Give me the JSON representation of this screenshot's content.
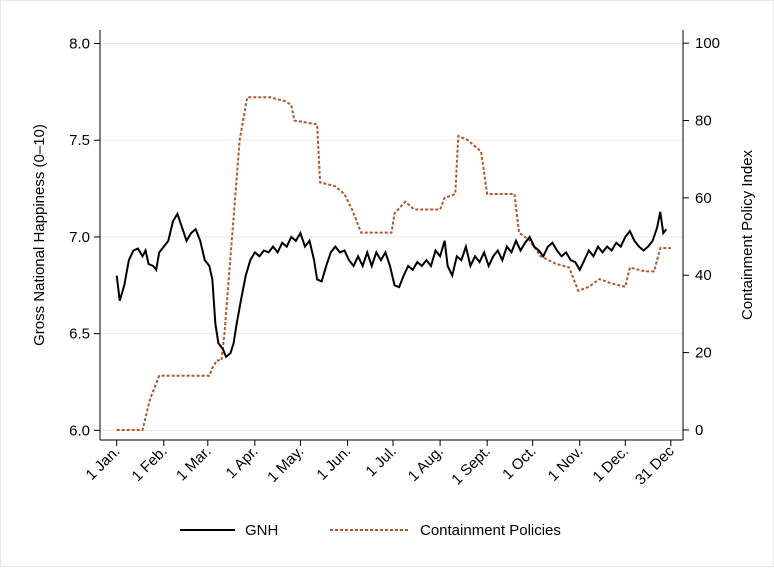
{
  "chart_data": {
    "type": "line",
    "y_label": "Gross National Happiness (0–10)",
    "y2_label": "Containment Policy Index",
    "xlim": [
      -10,
      374
    ],
    "xticks": [
      {
        "value": 1,
        "label": "1 Jan."
      },
      {
        "value": 32,
        "label": "1 Feb."
      },
      {
        "value": 61,
        "label": "1 Mar."
      },
      {
        "value": 92,
        "label": "1 Apr."
      },
      {
        "value": 122,
        "label": "1 May."
      },
      {
        "value": 153,
        "label": "1 Jun."
      },
      {
        "value": 183,
        "label": "1 Jul."
      },
      {
        "value": 214,
        "label": "1 Aug."
      },
      {
        "value": 245,
        "label": "1 Sept."
      },
      {
        "value": 275,
        "label": "1 Oct."
      },
      {
        "value": 306,
        "label": "1 Nov."
      },
      {
        "value": 336,
        "label": "1 Dec."
      },
      {
        "value": 366,
        "label": "31 Dec"
      }
    ],
    "ylim": [
      5.95,
      8.07
    ],
    "yticks": [
      {
        "value": 6.0,
        "label": "6.0"
      },
      {
        "value": 6.5,
        "label": "6.5"
      },
      {
        "value": 7.0,
        "label": "7.0"
      },
      {
        "value": 7.5,
        "label": "7.5"
      },
      {
        "value": 8.0,
        "label": "8.0"
      }
    ],
    "y2lim": [
      -2.6,
      103.4
    ],
    "y2ticks": [
      0,
      20,
      40,
      60,
      80,
      100
    ],
    "grid": true,
    "legend": "bottom",
    "series": [
      {
        "name": "GNH",
        "color": "#000000",
        "dash": false,
        "axis": "y",
        "x": [
          1,
          3,
          6,
          9,
          12,
          15,
          18,
          20,
          22,
          25,
          27,
          29,
          32,
          35,
          38,
          41,
          44,
          47,
          50,
          53,
          56,
          59,
          62,
          64,
          66,
          68,
          71,
          73,
          76,
          78,
          80,
          83,
          86,
          89,
          92,
          95,
          98,
          101,
          104,
          107,
          110,
          113,
          116,
          119,
          122,
          125,
          128,
          131,
          133,
          136,
          139,
          142,
          145,
          148,
          151,
          154,
          157,
          160,
          163,
          166,
          169,
          172,
          175,
          178,
          181,
          184,
          187,
          190,
          193,
          196,
          199,
          202,
          205,
          208,
          211,
          214,
          217,
          219,
          222,
          225,
          228,
          231,
          234,
          237,
          240,
          243,
          246,
          249,
          252,
          255,
          258,
          261,
          264,
          267,
          270,
          273,
          276,
          279,
          282,
          285,
          288,
          291,
          294,
          297,
          300,
          303,
          306,
          309,
          312,
          315,
          318,
          321,
          324,
          327,
          330,
          333,
          336,
          339,
          342,
          345,
          348,
          351,
          354,
          357,
          359,
          361,
          363
        ],
        "values": [
          6.8,
          6.67,
          6.75,
          6.88,
          6.93,
          6.94,
          6.9,
          6.93,
          6.86,
          6.85,
          6.83,
          6.92,
          6.95,
          6.98,
          7.08,
          7.12,
          7.05,
          6.98,
          7.02,
          7.04,
          6.98,
          6.88,
          6.85,
          6.78,
          6.55,
          6.45,
          6.42,
          6.38,
          6.4,
          6.45,
          6.55,
          6.68,
          6.8,
          6.88,
          6.92,
          6.9,
          6.93,
          6.92,
          6.95,
          6.92,
          6.97,
          6.95,
          7.0,
          6.98,
          7.02,
          6.95,
          6.98,
          6.88,
          6.78,
          6.77,
          6.85,
          6.92,
          6.95,
          6.92,
          6.93,
          6.88,
          6.85,
          6.9,
          6.85,
          6.92,
          6.85,
          6.92,
          6.88,
          6.92,
          6.85,
          6.75,
          6.74,
          6.8,
          6.85,
          6.83,
          6.87,
          6.85,
          6.88,
          6.85,
          6.93,
          6.9,
          6.98,
          6.85,
          6.8,
          6.9,
          6.88,
          6.95,
          6.85,
          6.9,
          6.87,
          6.92,
          6.85,
          6.9,
          6.93,
          6.88,
          6.95,
          6.92,
          6.98,
          6.93,
          6.97,
          7.0,
          6.95,
          6.93,
          6.9,
          6.95,
          6.97,
          6.93,
          6.9,
          6.92,
          6.88,
          6.87,
          6.83,
          6.88,
          6.93,
          6.9,
          6.95,
          6.92,
          6.95,
          6.93,
          6.97,
          6.95,
          7.0,
          7.03,
          6.98,
          6.95,
          6.93,
          6.95,
          6.98,
          7.05,
          7.13,
          7.02,
          7.04
        ]
      },
      {
        "name": "Containment Policies",
        "color": "#b0582b",
        "dash": true,
        "axis": "y2",
        "x": [
          1,
          18,
          23,
          29,
          62,
          64,
          67,
          70,
          72,
          77,
          82,
          87,
          102,
          112,
          116,
          118,
          133,
          135,
          145,
          151,
          156,
          162,
          182,
          184,
          191,
          197,
          214,
          217,
          224,
          226,
          232,
          241,
          245,
          263,
          266,
          273,
          280,
          290,
          299,
          305,
          312,
          319,
          326,
          336,
          339,
          349,
          355,
          359,
          366
        ],
        "values": [
          0,
          0,
          8,
          14,
          14,
          16,
          18,
          18,
          25,
          50,
          75,
          86,
          86,
          85,
          84,
          80,
          79,
          64,
          63,
          61,
          57,
          51,
          51,
          56,
          59,
          57,
          57,
          60,
          61,
          76,
          75,
          72,
          61,
          61,
          51,
          49,
          45,
          43,
          42,
          36,
          37,
          39,
          38,
          37,
          42,
          41,
          41,
          47,
          47
        ]
      }
    ]
  }
}
